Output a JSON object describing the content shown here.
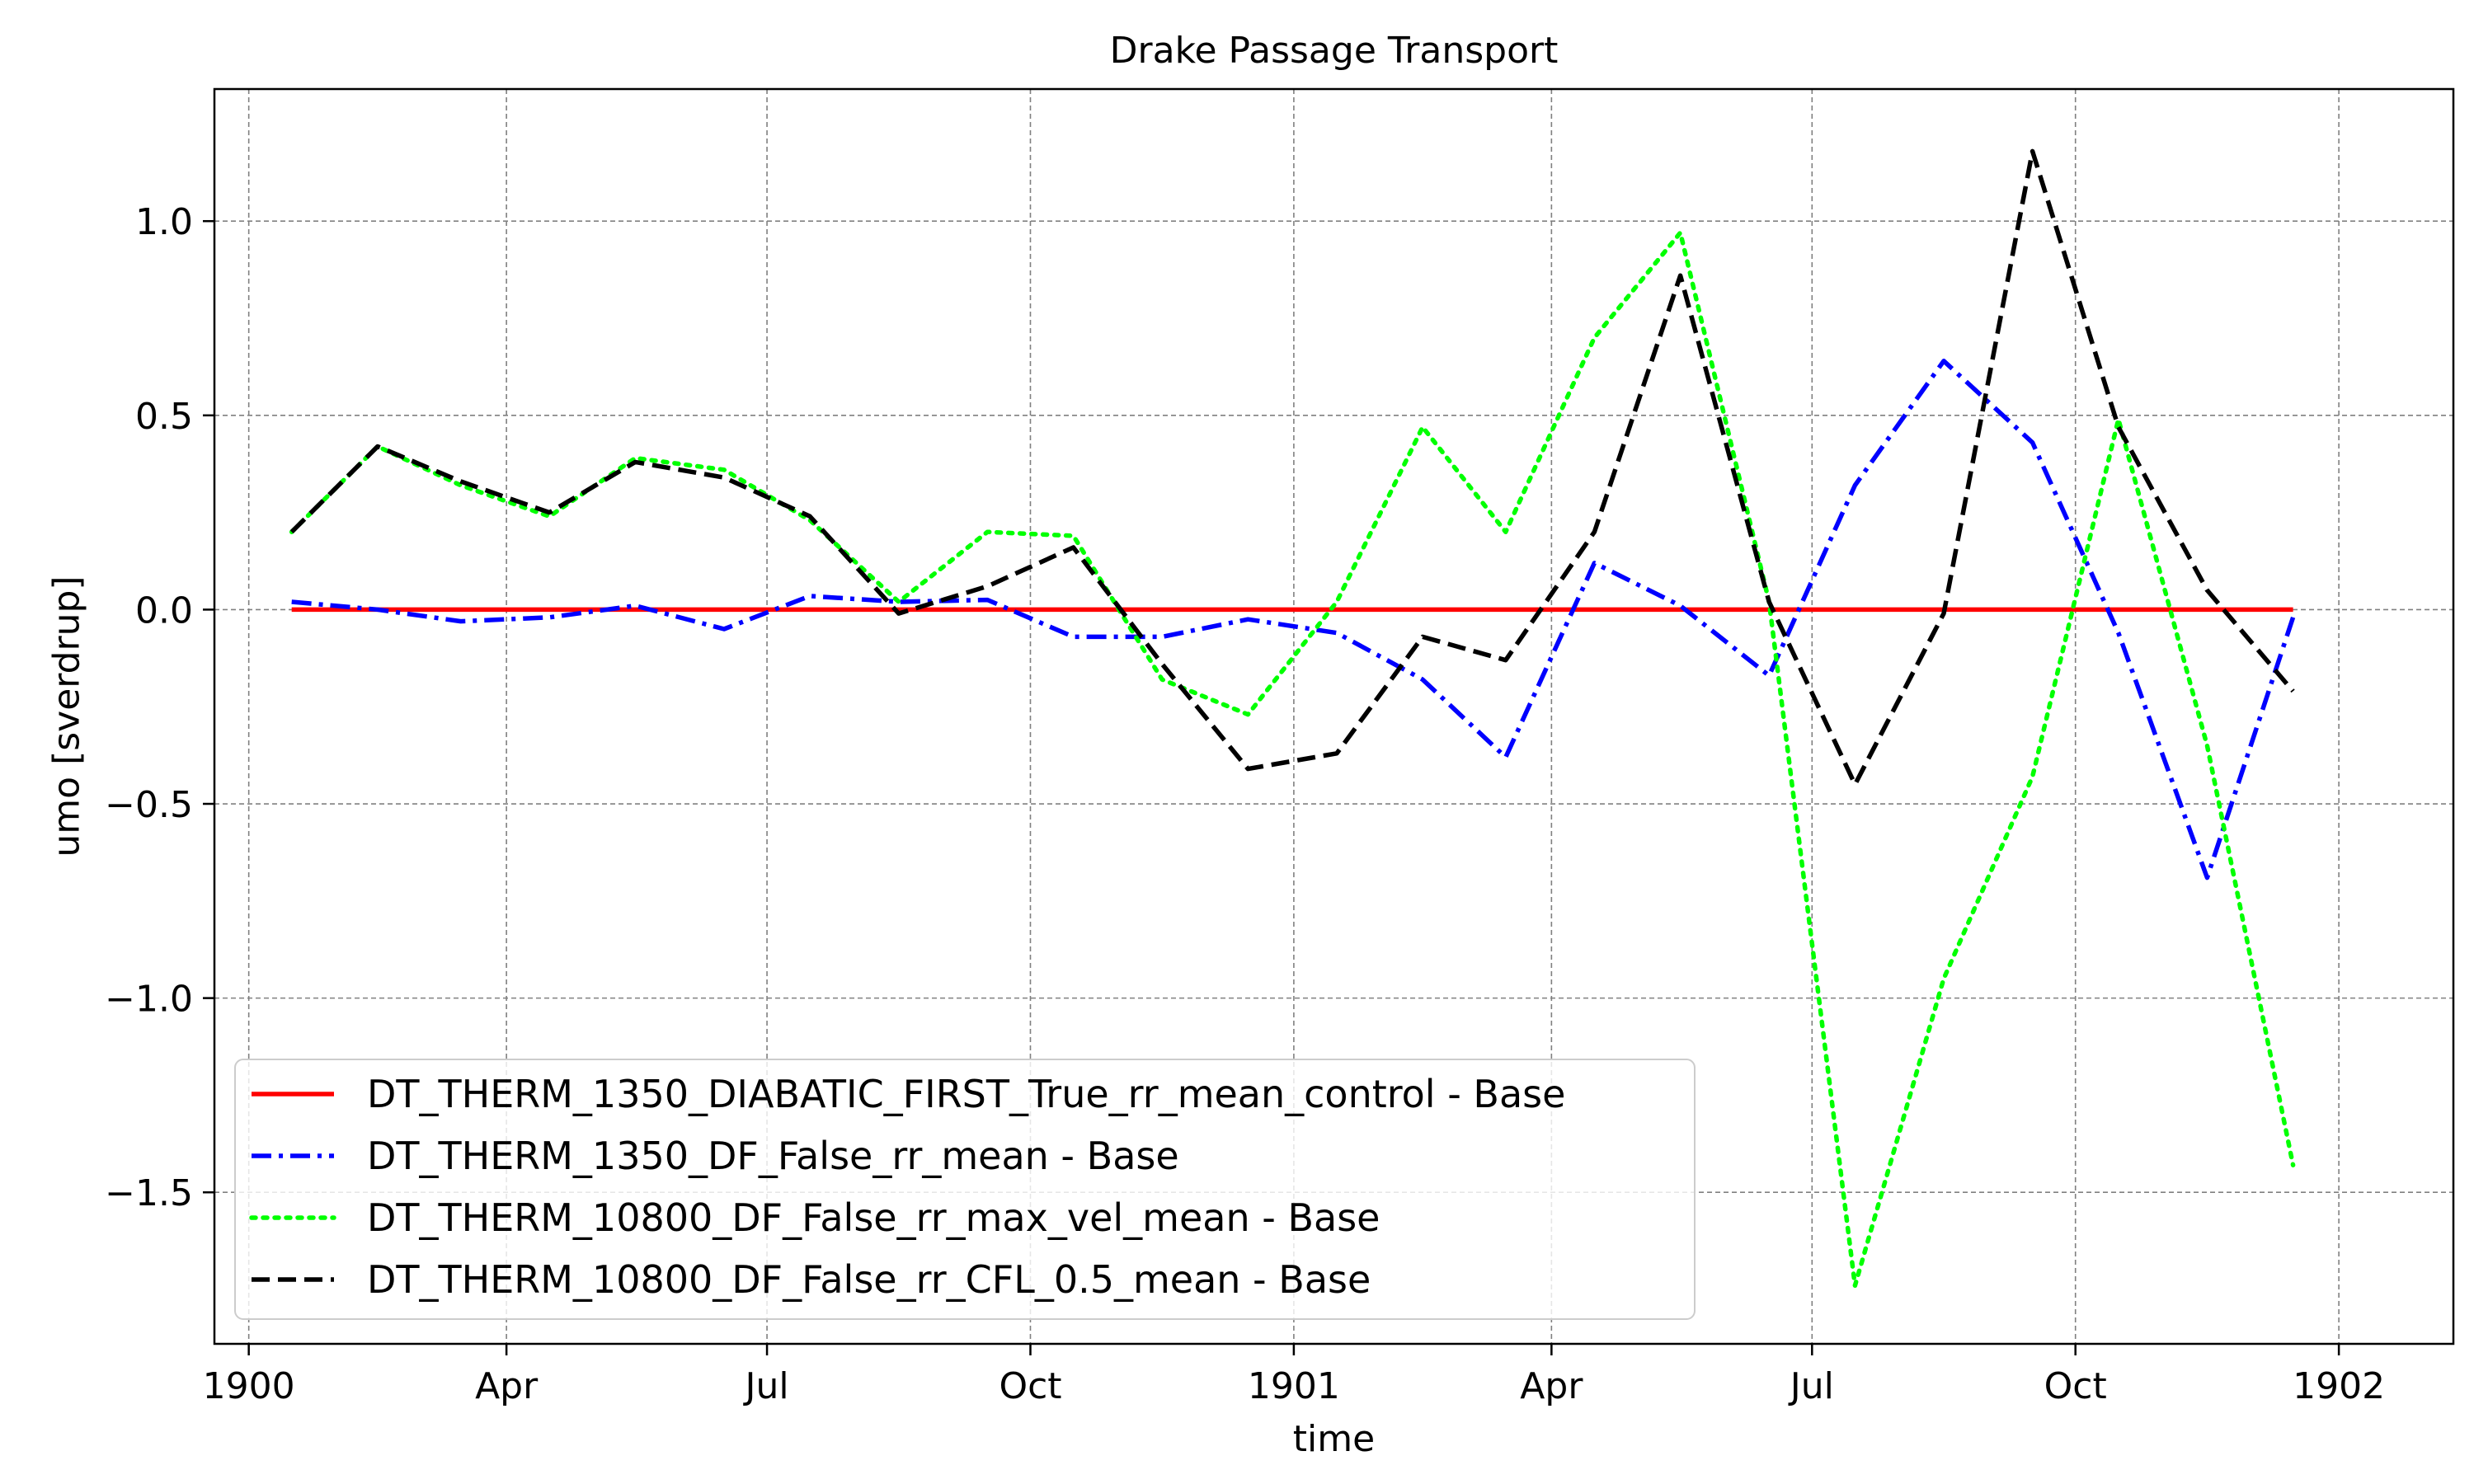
{
  "chart_data": {
    "type": "line",
    "title": "Drake Passage Transport",
    "xlabel": "time",
    "ylabel": "umo [sverdrup]",
    "x_ticks": [
      {
        "date": "1900-01-01",
        "label": "1900"
      },
      {
        "date": "1900-04-01",
        "label": "Apr"
      },
      {
        "date": "1900-07-01",
        "label": "Jul"
      },
      {
        "date": "1900-10-01",
        "label": "Oct"
      },
      {
        "date": "1901-01-01",
        "label": "1901"
      },
      {
        "date": "1901-04-01",
        "label": "Apr"
      },
      {
        "date": "1901-07-01",
        "label": "Jul"
      },
      {
        "date": "1901-10-01",
        "label": "Oct"
      },
      {
        "date": "1902-01-01",
        "label": "1902"
      }
    ],
    "y_ticks": [
      {
        "value": 1.0,
        "label": "1.0"
      },
      {
        "value": 0.5,
        "label": "0.5"
      },
      {
        "value": 0.0,
        "label": "0.0"
      },
      {
        "value": -0.5,
        "label": "−0.5"
      },
      {
        "value": -1.0,
        "label": "−1.0"
      },
      {
        "value": -1.5,
        "label": "−1.5"
      }
    ],
    "xlim": [
      "1899-12-20",
      "1902-02-10"
    ],
    "ylim": [
      -1.89,
      1.34
    ],
    "grid": true,
    "legend_position": "lower-left",
    "x": [
      "1900-01-16",
      "1900-02-15",
      "1900-03-16",
      "1900-04-16",
      "1900-05-16",
      "1900-06-16",
      "1900-07-16",
      "1900-08-16",
      "1900-09-16",
      "1900-10-16",
      "1900-11-16",
      "1900-12-16",
      "1901-01-16",
      "1901-02-15",
      "1901-03-16",
      "1901-04-16",
      "1901-05-16",
      "1901-06-16",
      "1901-07-16",
      "1901-08-16",
      "1901-09-16",
      "1901-10-16",
      "1901-11-16",
      "1901-12-16"
    ],
    "series": [
      {
        "name": "DT_THERM_1350_DIABATIC_FIRST_True_rr_mean_control - Base",
        "color": "#ff0000",
        "style": "solid",
        "values": [
          0,
          0,
          0,
          0,
          0,
          0,
          0,
          0,
          0,
          0,
          0,
          0,
          0,
          0,
          0,
          0,
          0,
          0,
          0,
          0,
          0,
          0,
          0,
          0
        ]
      },
      {
        "name": "DT_THERM_1350_DF_False_rr_mean - Base",
        "color": "#0000ff",
        "style": "dashdot",
        "values": [
          0.02,
          0.0,
          -0.03,
          -0.02,
          0.01,
          -0.05,
          0.035,
          0.02,
          0.025,
          -0.07,
          -0.07,
          -0.025,
          -0.06,
          -0.18,
          -0.38,
          0.12,
          0.01,
          -0.17,
          0.32,
          0.64,
          0.43,
          -0.06,
          -0.69,
          -0.02
        ]
      },
      {
        "name": "DT_THERM_10800_DF_False_rr_max_vel_mean - Base",
        "color": "#00ff00",
        "style": "dotted",
        "values": [
          0.2,
          0.42,
          0.32,
          0.24,
          0.39,
          0.36,
          0.23,
          0.02,
          0.2,
          0.19,
          -0.18,
          -0.27,
          0.02,
          0.47,
          0.2,
          0.7,
          0.97,
          0.02,
          -1.74,
          -0.95,
          -0.43,
          0.49,
          -0.35,
          -1.43
        ]
      },
      {
        "name": "DT_THERM_10800_DF_False_rr_CFL_0.5_mean - Base",
        "color": "#000000",
        "style": "dashed",
        "values": [
          0.2,
          0.42,
          0.33,
          0.25,
          0.38,
          0.34,
          0.24,
          -0.01,
          0.06,
          0.16,
          -0.14,
          -0.41,
          -0.37,
          -0.07,
          -0.13,
          0.2,
          0.86,
          0.02,
          -0.45,
          -0.01,
          1.18,
          0.47,
          0.05,
          -0.21
        ]
      }
    ]
  }
}
